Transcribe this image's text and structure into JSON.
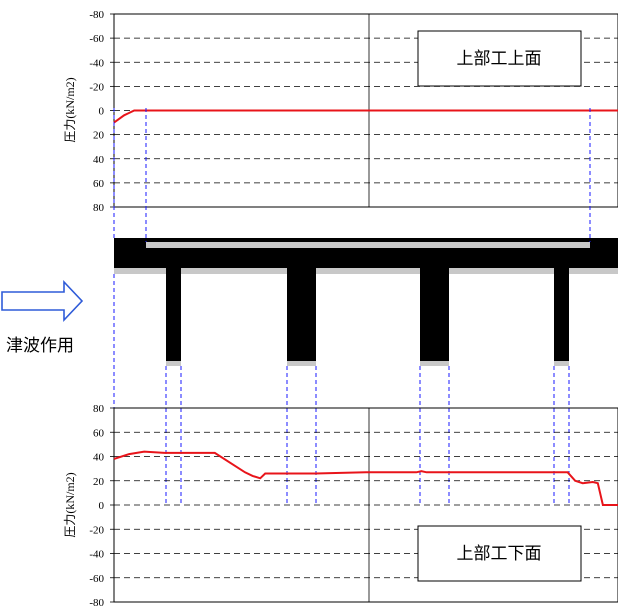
{
  "tsunami_label": "津波作用",
  "colors": {
    "pressure_line": "#e8141a",
    "guide_line": "#1a1aff",
    "deck": "#000000",
    "deck_shadow": "#c0c0c0",
    "arrow": "#2f5bd8"
  },
  "icons": {
    "wave_arrow": "hollow-right-arrow-icon"
  },
  "chart_data": [
    {
      "type": "line",
      "title": "上部工上面",
      "ylabel": "圧力(kN/m2)",
      "ylim": [
        -80,
        80
      ],
      "y_inverted": true,
      "yticks": [
        "-80",
        "-60",
        "-40",
        "-20",
        "0",
        "20",
        "40",
        "60",
        "80"
      ],
      "grid": "dashed horizontal",
      "x": [
        0,
        2,
        4,
        6,
        8,
        10,
        12,
        20,
        40,
        60,
        80,
        100
      ],
      "series": [
        {
          "values": [
            10,
            4,
            0,
            0,
            0,
            0,
            0,
            0,
            0,
            0,
            0,
            0
          ]
        }
      ]
    },
    {
      "type": "line",
      "title": "上部工下面",
      "ylabel": "圧力(kN/m2)",
      "ylim": [
        -80,
        80
      ],
      "yticks": [
        "80",
        "60",
        "40",
        "20",
        "0",
        "-20",
        "-40",
        "-60",
        "-80"
      ],
      "grid": "dashed horizontal",
      "x": [
        0,
        3,
        6,
        10,
        20,
        26,
        27.5,
        29,
        30,
        31,
        32,
        40,
        50,
        60,
        61,
        62,
        63,
        65,
        68,
        70,
        80,
        90,
        100
      ],
      "series": [
        {
          "values": [
            38,
            42,
            44,
            43,
            43,
            27,
            24,
            22,
            26,
            26,
            26,
            26,
            27,
            27,
            28,
            27,
            27,
            27,
            27,
            27,
            27,
            27,
            27
          ]
        }
      ],
      "series_tail": {
        "x": [
          70,
          90,
          91.5,
          93,
          95,
          96,
          97,
          100
        ],
        "values": [
          27,
          27,
          20,
          18,
          19,
          18,
          0,
          0
        ]
      }
    }
  ]
}
